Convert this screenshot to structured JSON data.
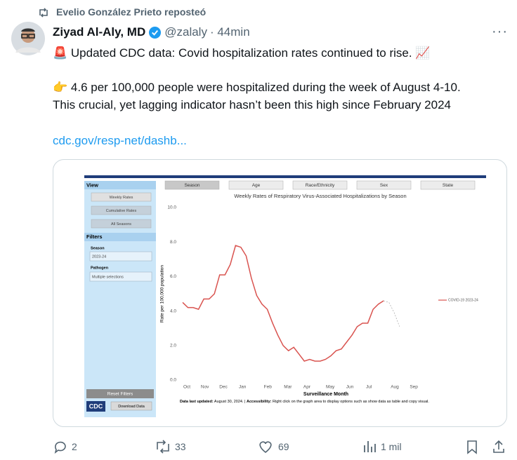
{
  "repost": {
    "text": "Evelio González Prieto reposteó"
  },
  "author": {
    "name": "Ziyad Al-Aly, MD",
    "handle": "@zalaly",
    "time": "· 44min"
  },
  "post": {
    "lines": [
      "🚨 Updated CDC data: Covid hospitalization rates continued to rise. 📈",
      "👉 4.6 per 100,000 people were hospitalized during the week of August 4-10.",
      "This crucial, yet lagging indicator hasn’t been this high since February 2024"
    ],
    "link": "cdc.gov/resp-net/dashb..."
  },
  "dashboard": {
    "view_header": "View",
    "view_buttons": [
      "Weekly Rates",
      "Cumulative Rates",
      "All Seasons"
    ],
    "filters_header": "Filters",
    "season_label": "Season",
    "season_value": "2023-24",
    "pathogen_label": "Pathogen",
    "pathogen_value": "Multiple selections",
    "reset": "Reset Filters",
    "logo": "CDC",
    "download": "Download Data",
    "tabs": [
      "Season",
      "Age",
      "Race/Ethnicity",
      "Sex",
      "State"
    ],
    "note_bold": "Data last updated:",
    "note_date": "August 30, 2024. |",
    "note_access": "Accessibility:",
    "note_rest": "Right click on the graph area to display options such as show data as table and copy visual."
  },
  "chart_data": {
    "type": "line",
    "title": "Weekly Rates of Respiratory Virus-Associated Hospitalizations by Season",
    "ylabel": "Rate per 100,000 population",
    "xlabel": "Surveillance Month",
    "xlim": [
      -1,
      45
    ],
    "ylim": [
      0,
      10
    ],
    "xticks": [
      {
        "value": 0.8,
        "label": "Oct"
      },
      {
        "value": 4.2,
        "label": "Nov"
      },
      {
        "value": 7.7,
        "label": "Dec"
      },
      {
        "value": 11.3,
        "label": "Jan"
      },
      {
        "value": 16.1,
        "label": "Feb"
      },
      {
        "value": 19.9,
        "label": "Mar"
      },
      {
        "value": 23.5,
        "label": "Apr"
      },
      {
        "value": 27.9,
        "label": "May"
      },
      {
        "value": 31.6,
        "label": "Jun"
      },
      {
        "value": 35.2,
        "label": "Jul"
      },
      {
        "value": 40.1,
        "label": "Aug"
      },
      {
        "value": 43.7,
        "label": "Sep"
      }
    ],
    "yticks": [
      {
        "value": 0,
        "label": "0.0"
      },
      {
        "value": 2,
        "label": "2.0"
      },
      {
        "value": 4,
        "label": "4.0"
      },
      {
        "value": 6,
        "label": "6.0"
      },
      {
        "value": 8,
        "label": "8.0"
      },
      {
        "value": 10,
        "label": "10.0"
      }
    ],
    "series": [
      {
        "name": "COVID-19 2023-24",
        "color": "#d9534f",
        "x": [
          0,
          1,
          2,
          3,
          4,
          5,
          6,
          7,
          8,
          9,
          10,
          11,
          12,
          13,
          14,
          15,
          16,
          17,
          18,
          19,
          20,
          21,
          22,
          23,
          24,
          25,
          26,
          27,
          28,
          29,
          30,
          31,
          32,
          33,
          34,
          35,
          36,
          37,
          38
        ],
        "values": [
          4.5,
          4.2,
          4.2,
          4.1,
          4.7,
          4.7,
          5.0,
          6.1,
          6.1,
          6.7,
          7.8,
          7.7,
          7.2,
          5.9,
          4.9,
          4.4,
          4.1,
          3.3,
          2.6,
          2.0,
          1.7,
          1.9,
          1.5,
          1.1,
          1.2,
          1.1,
          1.1,
          1.2,
          1.4,
          1.7,
          1.8,
          2.2,
          2.6,
          3.1,
          3.3,
          3.3,
          4.1,
          4.4,
          4.6
        ]
      },
      {
        "color": "#b0b0b0",
        "dashed": true,
        "x": [
          38,
          39,
          40,
          41
        ],
        "values": [
          4.6,
          4.5,
          3.9,
          3.1
        ]
      }
    ]
  },
  "actions": {
    "replies": "2",
    "reposts": "33",
    "likes": "69",
    "views": "1 mil"
  }
}
